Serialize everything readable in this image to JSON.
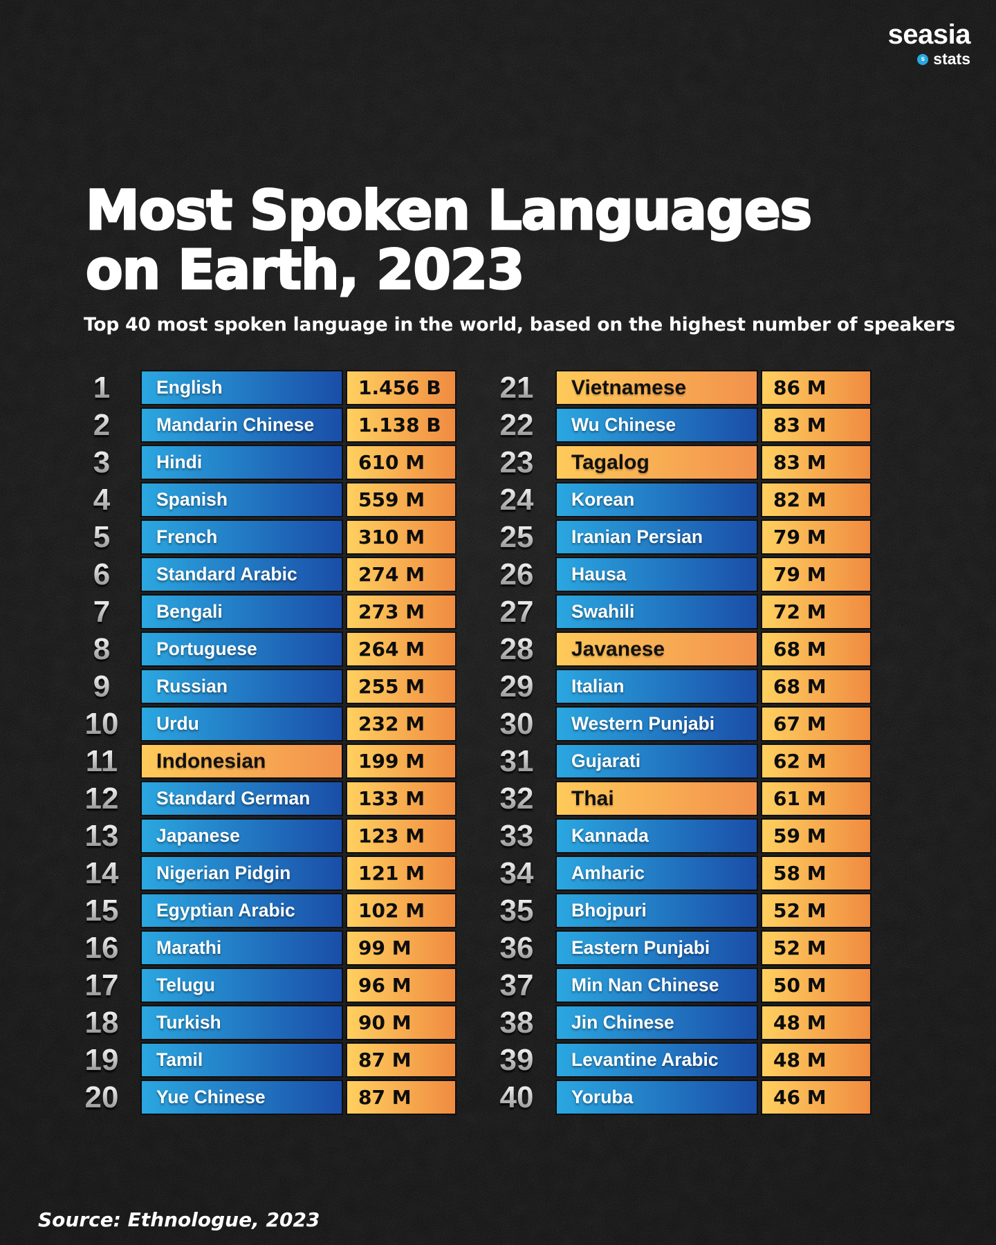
{
  "logo": {
    "brand": "seasia",
    "sub": "stats"
  },
  "title_line1": "Most Spoken Languages",
  "title_line2": "on Earth, 2023",
  "subtitle": "Top 40 most spoken language in the world, based on the highest number of speakers",
  "source": "Source: Ethnologue, 2023",
  "colors": {
    "background": "#0e0e0e",
    "bar_blue_left": "#2ba7e0",
    "bar_blue_right": "#1a4ea8",
    "bar_orange_left": "#ffd05f",
    "bar_orange_right": "#f08b41",
    "rank_silver": "#c9c9c9",
    "logo_dot_blue": "#29a8e2"
  },
  "chart_data": {
    "type": "table",
    "title": "Most Spoken Languages on Earth, 2023",
    "columns": [
      "rank",
      "language",
      "speakers"
    ],
    "note": "highlight=true rows use orange language bar (Southeast Asian languages)",
    "rows": [
      {
        "rank": 1,
        "language": "English",
        "value": "1.456 B",
        "highlight": false
      },
      {
        "rank": 2,
        "language": "Mandarin Chinese",
        "value": "1.138 B",
        "highlight": false
      },
      {
        "rank": 3,
        "language": "Hindi",
        "value": "610 M",
        "highlight": false
      },
      {
        "rank": 4,
        "language": "Spanish",
        "value": "559 M",
        "highlight": false
      },
      {
        "rank": 5,
        "language": "French",
        "value": "310 M",
        "highlight": false
      },
      {
        "rank": 6,
        "language": "Standard Arabic",
        "value": "274 M",
        "highlight": false
      },
      {
        "rank": 7,
        "language": "Bengali",
        "value": "273 M",
        "highlight": false
      },
      {
        "rank": 8,
        "language": "Portuguese",
        "value": "264 M",
        "highlight": false
      },
      {
        "rank": 9,
        "language": "Russian",
        "value": "255 M",
        "highlight": false
      },
      {
        "rank": 10,
        "language": "Urdu",
        "value": "232 M",
        "highlight": false
      },
      {
        "rank": 11,
        "language": "Indonesian",
        "value": "199 M",
        "highlight": true
      },
      {
        "rank": 12,
        "language": "Standard German",
        "value": "133 M",
        "highlight": false
      },
      {
        "rank": 13,
        "language": "Japanese",
        "value": "123 M",
        "highlight": false
      },
      {
        "rank": 14,
        "language": "Nigerian Pidgin",
        "value": "121 M",
        "highlight": false
      },
      {
        "rank": 15,
        "language": "Egyptian Arabic",
        "value": "102 M",
        "highlight": false
      },
      {
        "rank": 16,
        "language": "Marathi",
        "value": "99 M",
        "highlight": false
      },
      {
        "rank": 17,
        "language": "Telugu",
        "value": "96 M",
        "highlight": false
      },
      {
        "rank": 18,
        "language": "Turkish",
        "value": "90 M",
        "highlight": false
      },
      {
        "rank": 19,
        "language": "Tamil",
        "value": "87 M",
        "highlight": false
      },
      {
        "rank": 20,
        "language": "Yue Chinese",
        "value": "87 M",
        "highlight": false
      },
      {
        "rank": 21,
        "language": "Vietnamese",
        "value": "86 M",
        "highlight": true
      },
      {
        "rank": 22,
        "language": "Wu Chinese",
        "value": "83 M",
        "highlight": false
      },
      {
        "rank": 23,
        "language": "Tagalog",
        "value": "83 M",
        "highlight": true
      },
      {
        "rank": 24,
        "language": "Korean",
        "value": "82 M",
        "highlight": false
      },
      {
        "rank": 25,
        "language": "Iranian Persian",
        "value": "79 M",
        "highlight": false
      },
      {
        "rank": 26,
        "language": "Hausa",
        "value": "79 M",
        "highlight": false
      },
      {
        "rank": 27,
        "language": "Swahili",
        "value": "72 M",
        "highlight": false
      },
      {
        "rank": 28,
        "language": "Javanese",
        "value": "68 M",
        "highlight": true
      },
      {
        "rank": 29,
        "language": "Italian",
        "value": "68 M",
        "highlight": false
      },
      {
        "rank": 30,
        "language": "Western Punjabi",
        "value": "67 M",
        "highlight": false
      },
      {
        "rank": 31,
        "language": "Gujarati",
        "value": "62 M",
        "highlight": false
      },
      {
        "rank": 32,
        "language": "Thai",
        "value": "61 M",
        "highlight": true
      },
      {
        "rank": 33,
        "language": "Kannada",
        "value": "59 M",
        "highlight": false
      },
      {
        "rank": 34,
        "language": "Amharic",
        "value": "58 M",
        "highlight": false
      },
      {
        "rank": 35,
        "language": "Bhojpuri",
        "value": "52 M",
        "highlight": false
      },
      {
        "rank": 36,
        "language": "Eastern Punjabi",
        "value": "52 M",
        "highlight": false
      },
      {
        "rank": 37,
        "language": "Min Nan Chinese",
        "value": "50 M",
        "highlight": false
      },
      {
        "rank": 38,
        "language": "Jin Chinese",
        "value": "48 M",
        "highlight": false
      },
      {
        "rank": 39,
        "language": "Levantine Arabic",
        "value": "48 M",
        "highlight": false
      },
      {
        "rank": 40,
        "language": "Yoruba",
        "value": "46 M",
        "highlight": false
      }
    ]
  }
}
